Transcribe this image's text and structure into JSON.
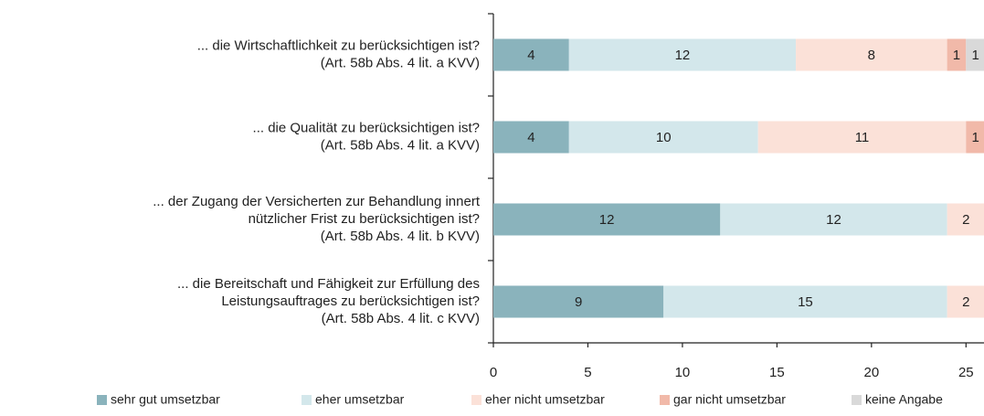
{
  "chart_data": {
    "type": "stacked-bar-horizontal",
    "categories": [
      [
        "... die Wirtschaftlichkeit zu berücksichtigen ist?",
        "(Art. 58b Abs. 4 lit. a KVV)"
      ],
      [
        "... die Qualität zu berücksichtigen ist?",
        "(Art. 58b Abs. 4 lit. a KVV)"
      ],
      [
        "... der Zugang der Versicherten zur Behandlung innert",
        "nützlicher Frist zu berücksichtigen ist?",
        "(Art. 58b Abs. 4 lit. b KVV)"
      ],
      [
        "... die Bereitschaft und Fähigkeit zur Erfüllung des",
        "Leistungsauftrages zu berücksichtigen ist?",
        "(Art. 58b Abs. 4 lit. c KVV)"
      ]
    ],
    "series": [
      {
        "name": "sehr gut umsetzbar",
        "color": "#8ab3bc",
        "values": [
          4,
          4,
          12,
          9
        ]
      },
      {
        "name": "eher umsetzbar",
        "color": "#d3e7eb",
        "values": [
          12,
          10,
          12,
          15
        ]
      },
      {
        "name": "eher nicht umsetzbar",
        "color": "#fbe1d8",
        "values": [
          8,
          11,
          2,
          2
        ]
      },
      {
        "name": "gar nicht umsetzbar",
        "color": "#f1b9a9",
        "values": [
          1,
          1,
          null,
          null
        ]
      },
      {
        "name": "keine Angabe",
        "color": "#d9d9d9",
        "values": [
          1,
          null,
          null,
          null
        ]
      }
    ],
    "xlim": [
      0,
      26
    ],
    "xticks": [
      0,
      5,
      10,
      15,
      20,
      25
    ],
    "legend": "bottom"
  }
}
